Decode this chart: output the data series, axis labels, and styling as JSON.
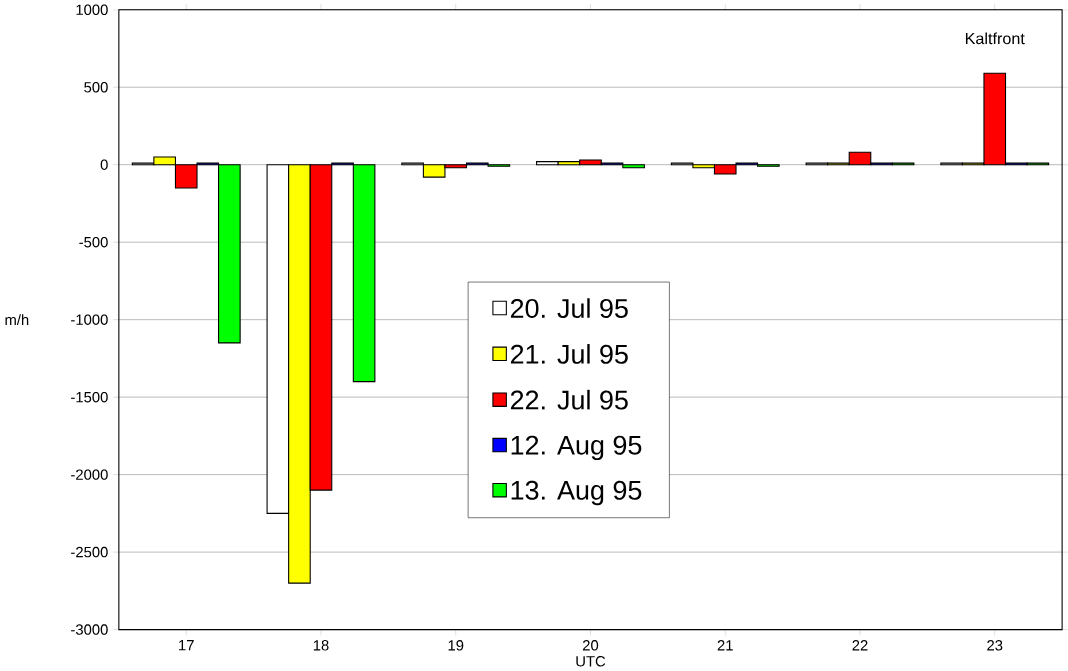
{
  "chart_data": {
    "type": "bar",
    "xlabel": "UTC",
    "ylabel": "m/h",
    "categories": [
      "17",
      "18",
      "19",
      "20",
      "21",
      "22",
      "23"
    ],
    "series": [
      {
        "name": "20. Jul 95",
        "color": "#ffffff",
        "values": [
          10,
          -2250,
          10,
          20,
          10,
          10,
          10
        ]
      },
      {
        "name": "21. Jul 95",
        "color": "#ffff00",
        "values": [
          50,
          -2700,
          -80,
          20,
          -20,
          10,
          10
        ]
      },
      {
        "name": "22. Jul 95",
        "color": "#ff0000",
        "values": [
          -150,
          -2100,
          -20,
          30,
          -60,
          80,
          590
        ]
      },
      {
        "name": "12. Aug 95",
        "color": "#0000ff",
        "values": [
          10,
          10,
          10,
          10,
          10,
          10,
          10
        ]
      },
      {
        "name": "13. Aug 95",
        "color": "#00ff00",
        "values": [
          -1150,
          -1400,
          -10,
          -20,
          -10,
          10,
          10
        ]
      }
    ],
    "ylim": [
      -3000,
      1000
    ],
    "yticks": [
      -3000,
      -2500,
      -2000,
      -1500,
      -1000,
      -500,
      0,
      500,
      1000
    ],
    "grid": "y",
    "legend": "center",
    "annotations": [
      {
        "text": "Kaltfront",
        "x": "23",
        "y": 590
      }
    ]
  }
}
